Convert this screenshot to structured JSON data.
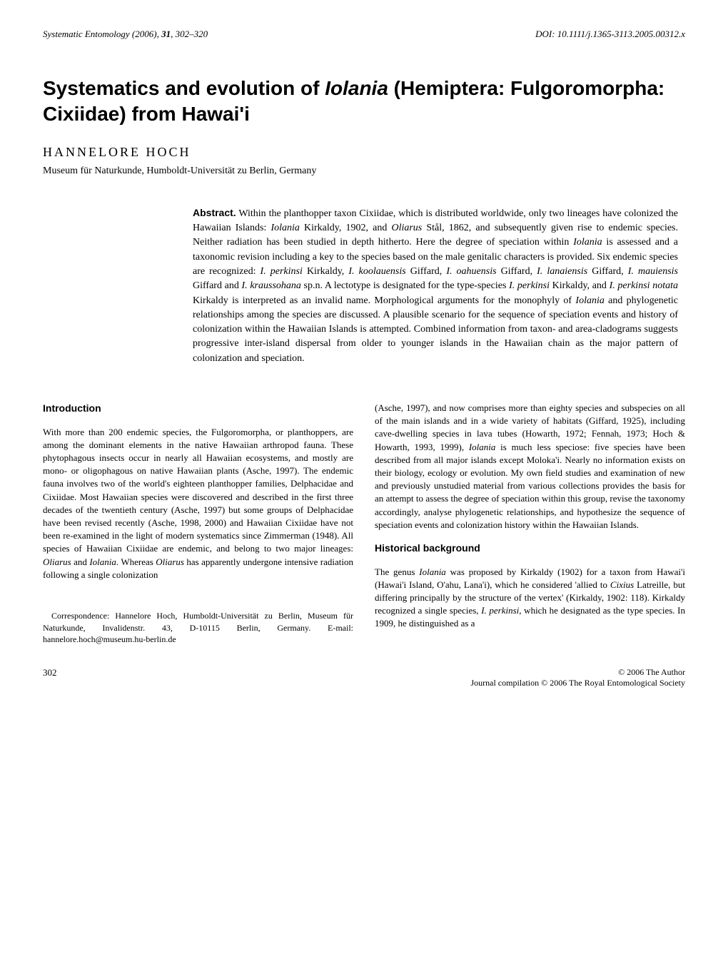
{
  "header": {
    "journal": "Systematic Entomology",
    "year": "(2006)",
    "volume": "31",
    "pages": "302–320",
    "doi": "DOI: 10.1111/j.1365-3113.2005.00312.x"
  },
  "title_html": "Systematics and evolution of <span class=\"italic\">Iolania</span> (Hemiptera: Fulgoromorpha: Cixiidae) from Hawai'i",
  "author": "HANNELORE HOCH",
  "affiliation": "Museum für Naturkunde, Humboldt-Universität zu Berlin, Germany",
  "abstract_label": "Abstract.",
  "abstract_html": "Within the planthopper taxon Cixiidae, which is distributed worldwide, only two lineages have colonized the Hawaiian Islands: <span class=\"italic\">Iolania</span> Kirkaldy, 1902, and <span class=\"italic\">Oliarus</span> Stål, 1862, and subsequently given rise to endemic species. Neither radiation has been studied in depth hitherto. Here the degree of speciation within <span class=\"italic\">Iolania</span> is assessed and a taxonomic revision including a key to the species based on the male genitalic characters is provided. Six endemic species are recognized: <span class=\"italic\">I. perkinsi</span> Kirkaldy, <span class=\"italic\">I. koolauensis</span> Giffard, <span class=\"italic\">I. oahuensis</span> Giffard, <span class=\"italic\">I. lanaiensis</span> Giffard, <span class=\"italic\">I. mauiensis</span> Giffard and <span class=\"italic\">I. kraussohana</span> sp.n. A lectotype is designated for the type-species <span class=\"italic\">I. perkinsi</span> Kirkaldy, and <span class=\"italic\">I. perkinsi notata</span> Kirkaldy is interpreted as an invalid name. Morphological arguments for the monophyly of <span class=\"italic\">Iolania</span> and phylogenetic relationships among the species are discussed. A plausible scenario for the sequence of speciation events and history of colonization within the Hawaiian Islands is attempted. Combined information from taxon- and area-cladograms suggests progressive inter-island dispersal from older to younger islands in the Hawaiian chain as the major pattern of colonization and speciation.",
  "sections": {
    "intro_heading": "Introduction",
    "intro_para_html": "With more than 200 endemic species, the Fulgoromorpha, or planthoppers, are among the dominant elements in the native Hawaiian arthropod fauna. These phytophagous insects occur in nearly all Hawaiian ecosystems, and mostly are mono- or oligophagous on native Hawaiian plants (Asche, 1997). The endemic fauna involves two of the world's eighteen planthopper families, Delphacidae and Cixiidae. Most Hawaiian species were discovered and described in the first three decades of the twentieth century (Asche, 1997) but some groups of Delphacidae have been revised recently (Asche, 1998, 2000) and Hawaiian Cixiidae have not been re-examined in the light of modern systematics since Zimmerman (1948). All species of Hawaiian Cixiidae are endemic, and belong to two major lineages: <span class=\"italic\">Oliarus</span> and <span class=\"italic\">Iolania</span>. Whereas <span class=\"italic\">Oliarus</span> has apparently undergone intensive radiation following a single colonization",
    "intro_cont_html": "(Asche, 1997), and now comprises more than eighty species and subspecies on all of the main islands and in a wide variety of habitats (Giffard, 1925), including cave-dwelling species in lava tubes (Howarth, 1972; Fennah, 1973; Hoch &amp; Howarth, 1993, 1999), <span class=\"italic\">Iolania</span> is much less speciose: five species have been described from all major islands except Moloka'i. Nearly no information exists on their biology, ecology or evolution. My own field studies and examination of new and previously unstudied material from various collections provides the basis for an attempt to assess the degree of speciation within this group, revise the taxonomy accordingly, analyse phylogenetic relationships, and hypothesize the sequence of speciation events and colonization history within the Hawaiian Islands.",
    "hist_heading": "Historical background",
    "hist_para_html": "The genus <span class=\"italic\">Iolania</span> was proposed by Kirkaldy (1902) for a taxon from Hawai'i (Hawai'i Island, O'ahu, Lana'i), which he considered 'allied to <span class=\"italic\">Cixius</span> Latreille, but differing principally by the structure of the vertex' (Kirkaldy, 1902: 118). Kirkaldy recognized a single species, <span class=\"italic\">I. perkinsi</span>, which he designated as the type species. In 1909, he distinguished as a"
  },
  "correspondence": "Correspondence: Hannelore Hoch, Humboldt-Universität zu Berlin, Museum für Naturkunde, Invalidenstr. 43, D-10115 Berlin, Germany. E-mail: hannelore.hoch@museum.hu-berlin.de",
  "footer": {
    "page": "302",
    "copyright1": "© 2006 The Author",
    "copyright2": "Journal compilation © 2006 The Royal Entomological Society"
  }
}
